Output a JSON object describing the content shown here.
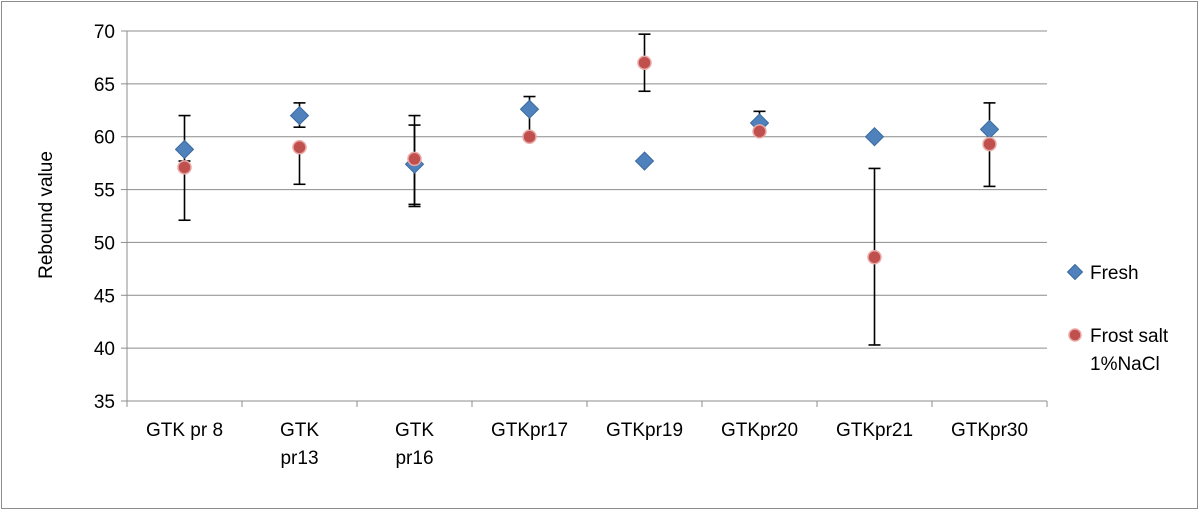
{
  "chart_data": {
    "type": "scatter",
    "categories": [
      [
        "GTK pr 8"
      ],
      [
        "GTK",
        "pr13"
      ],
      [
        "GTK",
        "pr16"
      ],
      [
        "GTKpr17"
      ],
      [
        "GTKpr19"
      ],
      [
        "GTKpr20"
      ],
      [
        "GTKpr21"
      ],
      [
        "GTKpr30"
      ]
    ],
    "ylabel": "Rebound value",
    "xlabel": "",
    "ylim": [
      35,
      70
    ],
    "yticks": [
      35,
      40,
      45,
      50,
      55,
      60,
      65,
      70
    ],
    "grid": true,
    "legend_position": "right",
    "series": [
      {
        "name": "Fresh",
        "marker": "diamond",
        "color": "#4F81BD",
        "values": [
          58.8,
          62.0,
          57.4,
          62.6,
          57.7,
          61.3,
          60.0,
          60.7
        ],
        "err_low": [
          57.7,
          60.9,
          53.6,
          null,
          null,
          null,
          null,
          null
        ],
        "err_high": [
          62.0,
          63.2,
          61.1,
          null,
          null,
          null,
          null,
          null
        ]
      },
      {
        "name": "Frost salt 1%NaCl",
        "name_lines": [
          "Frost salt",
          "1%NaCl"
        ],
        "marker": "circle",
        "color": "#C0504D",
        "values": [
          57.1,
          59.0,
          57.9,
          60.0,
          67.0,
          60.5,
          48.6,
          59.3
        ],
        "err_low": [
          52.1,
          55.5,
          53.4,
          null,
          64.3,
          null,
          40.3,
          55.3
        ],
        "err_high": [
          null,
          null,
          62.0,
          63.8,
          69.7,
          62.4,
          57.0,
          63.2
        ]
      }
    ]
  }
}
